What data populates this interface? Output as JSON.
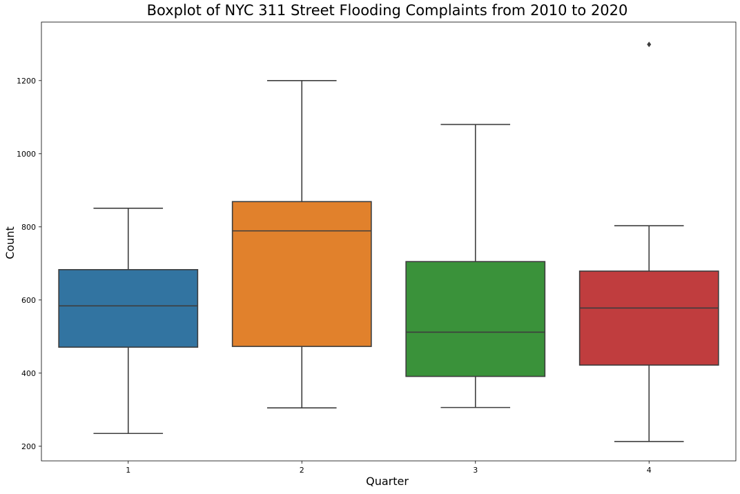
{
  "chart_data": {
    "type": "box",
    "title": "Boxplot of NYC 311 Street Flooding Complaints from 2010 to 2020",
    "xlabel": "Quarter",
    "ylabel": "Count",
    "categories": [
      "1",
      "2",
      "3",
      "4"
    ],
    "ylim": [
      160,
      1360
    ],
    "yticks": [
      200,
      400,
      600,
      800,
      1000,
      1200
    ],
    "grid": false,
    "boxes": [
      {
        "category": "1",
        "color": "#3274a1",
        "whisker_low": 235,
        "q1": 471,
        "median": 584,
        "q3": 683,
        "whisker_high": 851,
        "outliers": []
      },
      {
        "category": "2",
        "color": "#e1812c",
        "whisker_low": 305,
        "q1": 473,
        "median": 789,
        "q3": 869,
        "whisker_high": 1200,
        "outliers": []
      },
      {
        "category": "3",
        "color": "#3a923a",
        "whisker_low": 306,
        "q1": 391,
        "median": 512,
        "q3": 705,
        "whisker_high": 1080,
        "outliers": []
      },
      {
        "category": "4",
        "color": "#c03d3e",
        "whisker_low": 213,
        "q1": 422,
        "median": 578,
        "q3": 679,
        "whisker_high": 803,
        "outliers": [
          1299
        ]
      }
    ]
  }
}
